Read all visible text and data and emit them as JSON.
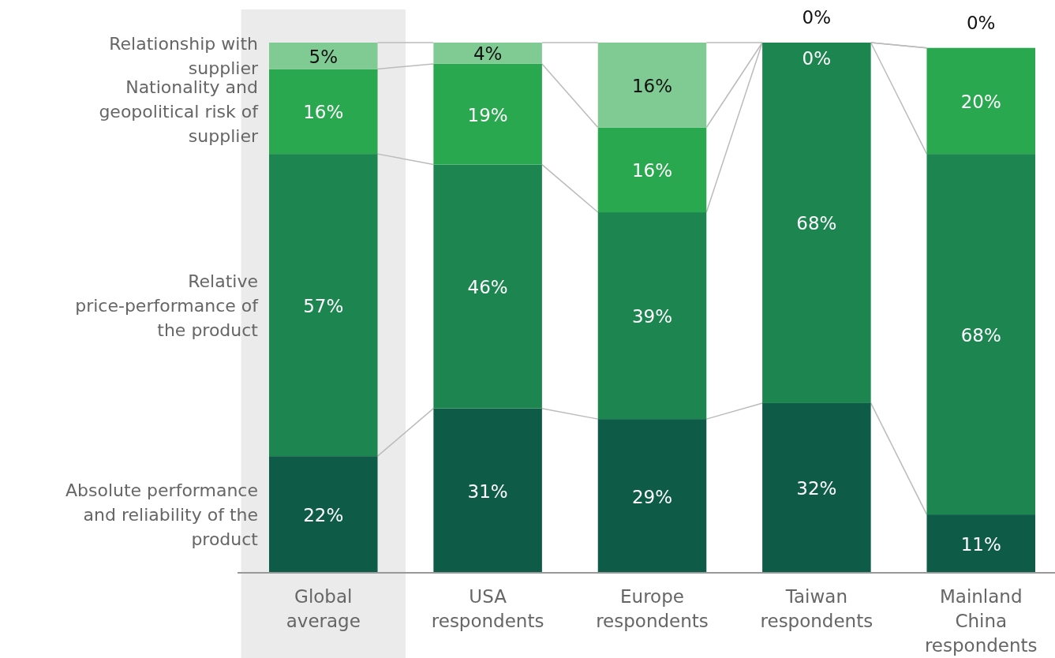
{
  "chart_data": {
    "type": "bar",
    "stacked": true,
    "legend": "left",
    "tick_labels": "x",
    "categories": [
      "Global average",
      "USA respondents",
      "Europe respondents",
      "Taiwan respondents",
      "Mainland China respondents"
    ],
    "ylim": [
      0,
      100
    ],
    "bands": [
      {
        "axis": "x",
        "from": "Global average",
        "to": "Global average",
        "color": "#ebebeb"
      }
    ],
    "series": [
      {
        "name": "Absolute performance and reliability of the product",
        "color": "#0e5c47",
        "values": [
          22,
          31,
          29,
          32,
          11
        ],
        "value_labels": [
          "22%",
          "31%",
          "29%",
          "32%",
          "11%"
        ]
      },
      {
        "name": "Relative price-performance of the product",
        "color": "#1d8550",
        "values": [
          57,
          46,
          39,
          68,
          68
        ],
        "value_labels": [
          "57%",
          "46%",
          "39%",
          "68%",
          "68%"
        ]
      },
      {
        "name": "Nationality and geopolitical risk of supplier",
        "color": "#2aa84f",
        "values": [
          16,
          19,
          16,
          0,
          20
        ],
        "value_labels": [
          "16%",
          "19%",
          "16%",
          "0%",
          "20%"
        ]
      },
      {
        "name": "Relationship with supplier",
        "color": "#80cb94",
        "values": [
          5,
          4,
          16,
          0,
          0
        ],
        "value_labels": [
          "5%",
          "4%",
          "16%",
          "0%",
          "0%"
        ]
      }
    ]
  }
}
